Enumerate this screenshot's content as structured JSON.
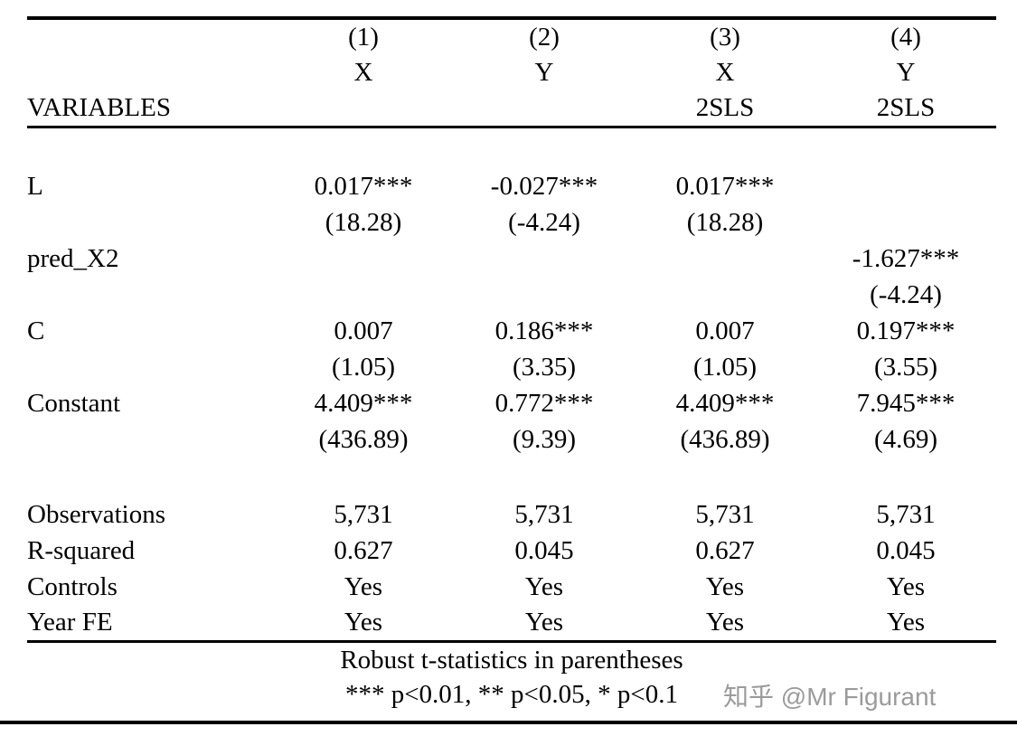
{
  "page": {
    "background": "#ffffff",
    "rule_color": "#000000"
  },
  "table": {
    "columns": {
      "variables_header": "VARIABLES",
      "numbers": [
        "(1)",
        "(2)",
        "(3)",
        "(4)"
      ],
      "dep_vars": [
        "X",
        "Y",
        "X",
        "Y"
      ],
      "methods": [
        "",
        "",
        "2SLS",
        "2SLS"
      ]
    },
    "coefficients": [
      {
        "label": "L",
        "values": [
          "0.017***",
          "-0.027***",
          "0.017***",
          ""
        ],
        "tstats": [
          "(18.28)",
          "(-4.24)",
          "(18.28)",
          ""
        ]
      },
      {
        "label": "pred_X2",
        "values": [
          "",
          "",
          "",
          "-1.627***"
        ],
        "tstats": [
          "",
          "",
          "",
          "(-4.24)"
        ]
      },
      {
        "label": "C",
        "values": [
          "0.007",
          "0.186***",
          "0.007",
          "0.197***"
        ],
        "tstats": [
          "(1.05)",
          "(3.35)",
          "(1.05)",
          "(3.55)"
        ]
      },
      {
        "label": "Constant",
        "values": [
          "4.409***",
          "0.772***",
          "4.409***",
          "7.945***"
        ],
        "tstats": [
          "(436.89)",
          "(9.39)",
          "(436.89)",
          "(4.69)"
        ]
      }
    ],
    "statistics": [
      {
        "label": "Observations",
        "values": [
          "5,731",
          "5,731",
          "5,731",
          "5,731"
        ]
      },
      {
        "label": "R-squared",
        "values": [
          "0.627",
          "0.045",
          "0.627",
          "0.045"
        ]
      },
      {
        "label": "Controls",
        "values": [
          "Yes",
          "Yes",
          "Yes",
          "Yes"
        ]
      },
      {
        "label": "Year FE",
        "values": [
          "Yes",
          "Yes",
          "Yes",
          "Yes"
        ]
      }
    ],
    "notes": {
      "line1": "Robust t-statistics in parentheses",
      "line2": "*** p<0.01, ** p<0.05, * p<0.1"
    }
  },
  "watermark": {
    "text": "知乎 @Mr Figurant",
    "color": "#9b9b9b"
  }
}
